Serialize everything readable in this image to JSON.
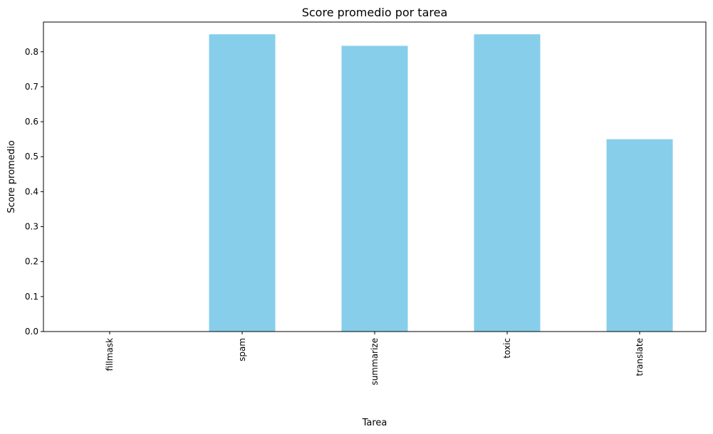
{
  "chart_data": {
    "type": "bar",
    "title": "Score promedio por tarea",
    "xlabel": "Tarea",
    "ylabel": "Score promedio",
    "categories": [
      "fillmask",
      "spam",
      "summarize",
      "toxic",
      "translate"
    ],
    "values": [
      0.0,
      0.85,
      0.817,
      0.85,
      0.55
    ],
    "ylim": [
      0,
      0.885
    ],
    "yticks": [
      "0.0",
      "0.1",
      "0.2",
      "0.3",
      "0.4",
      "0.5",
      "0.6",
      "0.7",
      "0.8"
    ],
    "bar_color": "#87CEEB",
    "grid": false,
    "legend": "none"
  }
}
